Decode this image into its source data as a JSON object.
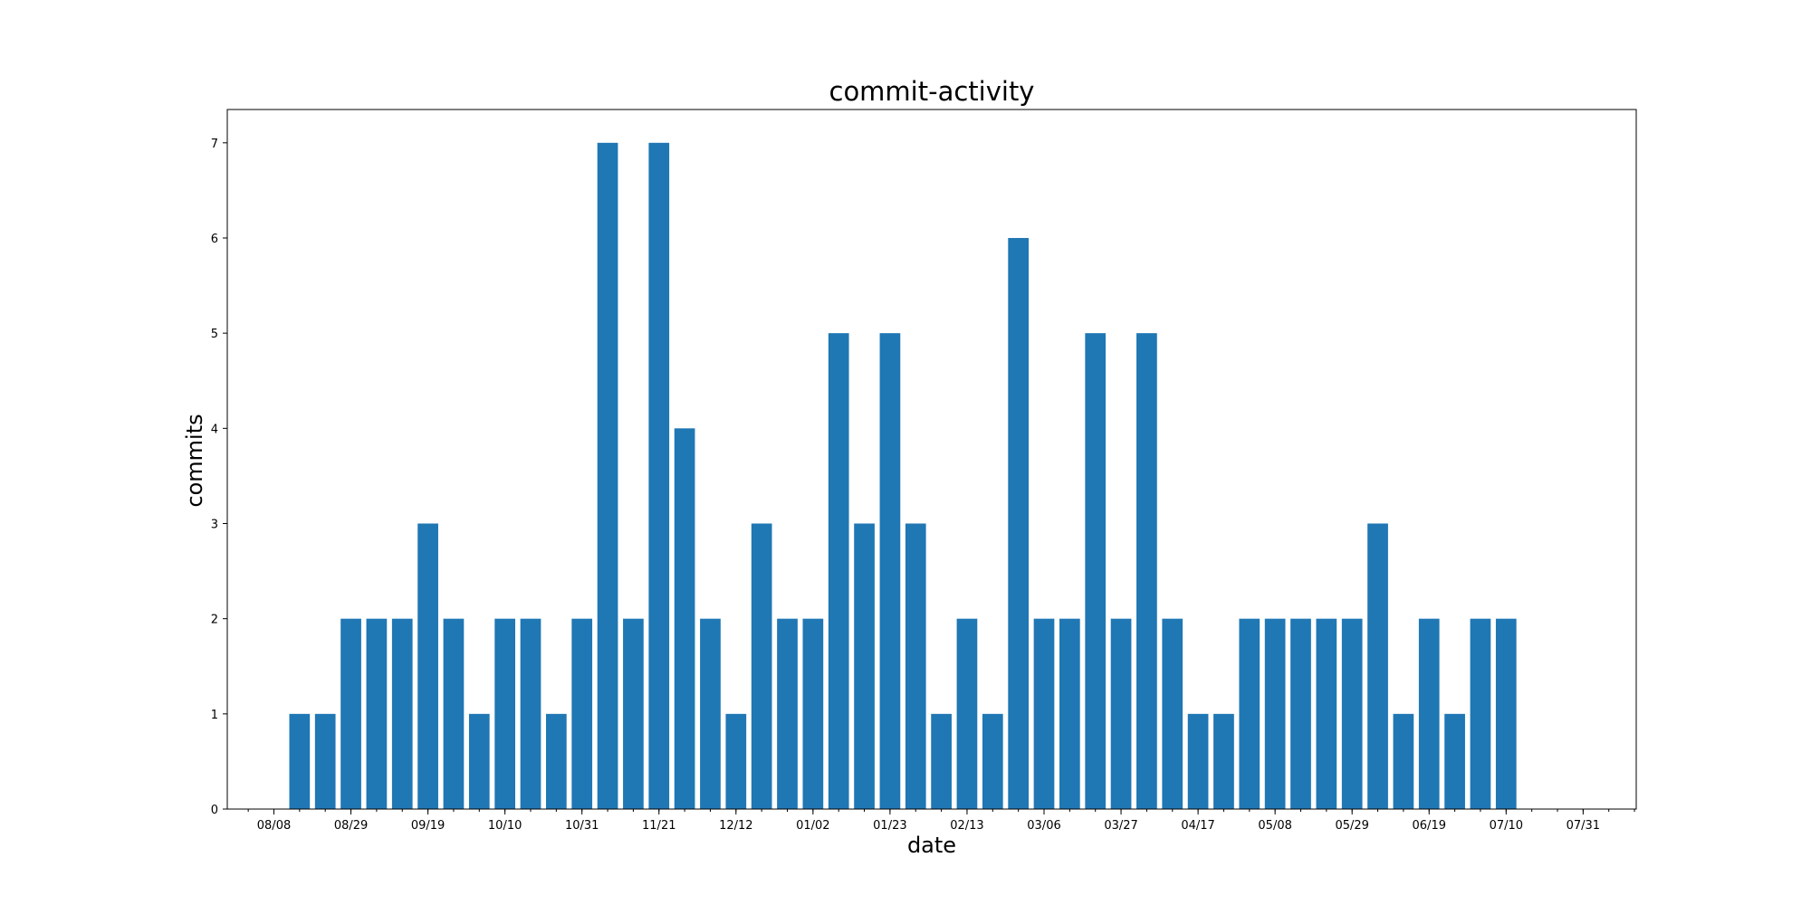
{
  "chart_data": {
    "type": "bar",
    "title": "commit-activity",
    "xlabel": "date",
    "ylabel": "commits",
    "ylim": [
      0,
      7.35
    ],
    "yticks": [
      0,
      1,
      2,
      3,
      4,
      5,
      6,
      7
    ],
    "x_axis": "weeks",
    "xlim": [
      0,
      55
    ],
    "xticks": [
      {
        "week": 1,
        "label": "08/08"
      },
      {
        "week": 4,
        "label": "08/29"
      },
      {
        "week": 7,
        "label": "09/19"
      },
      {
        "week": 10,
        "label": "10/10"
      },
      {
        "week": 13,
        "label": "10/31"
      },
      {
        "week": 16,
        "label": "11/21"
      },
      {
        "week": 19,
        "label": "12/12"
      },
      {
        "week": 22,
        "label": "01/02"
      },
      {
        "week": 25,
        "label": "01/23"
      },
      {
        "week": 28,
        "label": "02/13"
      },
      {
        "week": 31,
        "label": "03/06"
      },
      {
        "week": 34,
        "label": "03/27"
      },
      {
        "week": 37,
        "label": "04/17"
      },
      {
        "week": 40,
        "label": "05/08"
      },
      {
        "week": 43,
        "label": "05/29"
      },
      {
        "week": 46,
        "label": "06/19"
      },
      {
        "week": 49,
        "label": "07/10"
      },
      {
        "week": 52,
        "label": "07/31"
      }
    ],
    "values": [
      0,
      0,
      1,
      1,
      2,
      2,
      2,
      3,
      2,
      1,
      2,
      2,
      1,
      2,
      7,
      2,
      7,
      4,
      2,
      1,
      3,
      2,
      2,
      5,
      3,
      5,
      3,
      1,
      2,
      1,
      6,
      2,
      2,
      5,
      2,
      5,
      2,
      1,
      1,
      2,
      2,
      2,
      2,
      2,
      3,
      1,
      2,
      1,
      2,
      2,
      0,
      0,
      0,
      0,
      0
    ],
    "bar_color": "#1f77b4",
    "grid": false,
    "legend": "none"
  }
}
